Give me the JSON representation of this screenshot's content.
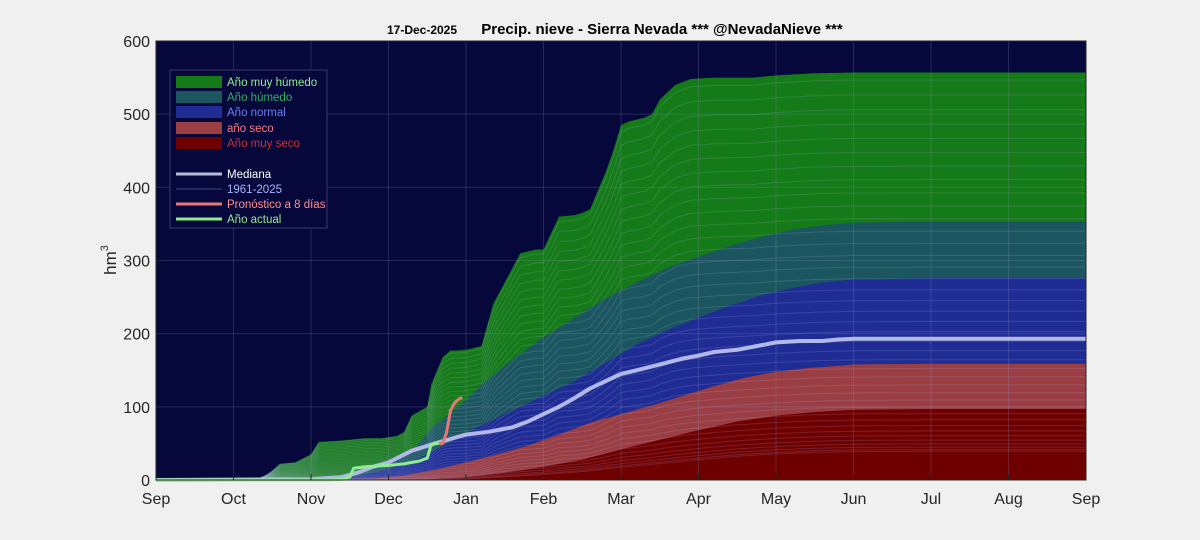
{
  "chart_data": {
    "type": "area",
    "title_date": "17-Dec-2025",
    "title": "Precip. nieve - Sierra Nevada  *** @NevadaNieve ***",
    "ylabel_base": "hm",
    "ylabel_exp": "3",
    "ylim": [
      0,
      600
    ],
    "yticks": [
      "0",
      "100",
      "200",
      "300",
      "400",
      "500",
      "600"
    ],
    "xlim": [
      0,
      12
    ],
    "xticks": [
      "Sep",
      "Oct",
      "Nov",
      "Dec",
      "Jan",
      "Feb",
      "Mar",
      "Apr",
      "May",
      "Jun",
      "Jul",
      "Aug",
      "Sep"
    ],
    "grid": true,
    "legend_position": "top-left",
    "colors": {
      "plot_bg": "#06073a",
      "muy_humedo": "#157a18",
      "humedo": "#1b5660",
      "normal": "#1f2c94",
      "seco": "#9a3e44",
      "muy_seco": "#6e0000",
      "mediana": "#b2b8e8",
      "pronostico": "#e87878",
      "actual": "#8fef8f"
    },
    "legend": [
      {
        "label": "Año muy húmedo",
        "kind": "patch",
        "color": "#157a18",
        "text_color": "#8fef8f"
      },
      {
        "label": "Año húmedo",
        "kind": "patch",
        "color": "#1b5660",
        "text_color": "#2fb06a"
      },
      {
        "label": "Año normal",
        "kind": "patch",
        "color": "#1f2c94",
        "text_color": "#6c7ef0"
      },
      {
        "label": "año seco",
        "kind": "patch",
        "color": "#9a3e44",
        "text_color": "#ff7b7b"
      },
      {
        "label": "Año muy seco",
        "kind": "patch",
        "color": "#6e0000",
        "text_color": "#d03030"
      },
      {
        "label": "Mediana",
        "kind": "line",
        "color": "#b8bcd8",
        "text_color": "#ffffff"
      },
      {
        "label": "1961-2025",
        "kind": "thinline",
        "color": "#3a4a8a",
        "text_color": "#a8b8ff"
      },
      {
        "label": "Pronóstico a 8 días",
        "kind": "line",
        "color": "#e87878",
        "text_color": "#ff9090"
      },
      {
        "label": "Año actual",
        "kind": "line",
        "color": "#8fef8f",
        "text_color": "#8fef8f"
      }
    ],
    "series": [
      {
        "name": "Año muy húmedo",
        "x": [
          0,
          1.3,
          1.45,
          1.6,
          1.8,
          2.0,
          2.1,
          2.4,
          2.7,
          2.9,
          3.1,
          3.2,
          3.3,
          3.5,
          3.55,
          3.7,
          3.8,
          3.9,
          4.0,
          4.2,
          4.35,
          4.5,
          4.7,
          4.9,
          5.0,
          5.2,
          5.4,
          5.5,
          5.6,
          5.8,
          5.9,
          6.0,
          6.1,
          6.3,
          6.4,
          6.5,
          6.7,
          6.9,
          7.2,
          7.5,
          7.7,
          8.0,
          8.5,
          9.0,
          10.0,
          11.0,
          12.0
        ],
        "y": [
          0,
          1,
          8,
          22,
          24,
          35,
          52,
          54,
          57,
          57,
          60,
          65,
          88,
          100,
          130,
          168,
          177,
          177,
          178,
          183,
          240,
          270,
          310,
          315,
          315,
          360,
          362,
          365,
          370,
          420,
          450,
          485,
          490,
          495,
          500,
          520,
          540,
          548,
          550,
          550,
          550,
          553,
          556,
          557,
          557,
          557,
          557
        ]
      },
      {
        "name": "Año húmedo",
        "x": [
          0,
          2.0,
          2.3,
          2.7,
          3.0,
          3.3,
          3.6,
          3.9,
          4.2,
          4.6,
          5.0,
          5.4,
          5.8,
          6.2,
          6.6,
          7.0,
          7.4,
          7.8,
          8.2,
          8.6,
          9.0,
          10.0,
          11.0,
          12.0
        ],
        "y": [
          0,
          2,
          5,
          12,
          22,
          40,
          75,
          100,
          130,
          165,
          195,
          222,
          248,
          270,
          290,
          305,
          320,
          332,
          342,
          348,
          352,
          353,
          353,
          353
        ]
      },
      {
        "name": "Año normal",
        "x": [
          0,
          2.2,
          2.6,
          3.0,
          3.4,
          3.8,
          4.2,
          4.6,
          5.0,
          5.4,
          5.8,
          6.2,
          6.6,
          7.0,
          7.4,
          7.8,
          8.2,
          8.6,
          9.0,
          10.0,
          11.0,
          12.0
        ],
        "y": [
          0,
          2,
          5,
          15,
          30,
          52,
          75,
          95,
          115,
          135,
          160,
          185,
          205,
          222,
          238,
          252,
          262,
          270,
          274,
          276,
          276,
          276
        ]
      },
      {
        "name": "año seco",
        "x": [
          0,
          2.8,
          3.2,
          3.6,
          4.0,
          4.4,
          4.8,
          5.2,
          5.6,
          6.0,
          6.4,
          6.8,
          7.2,
          7.6,
          8.0,
          8.4,
          8.8,
          9.0,
          10.0,
          11.0,
          12.0
        ],
        "y": [
          0,
          2,
          6,
          14,
          24,
          35,
          47,
          62,
          78,
          90,
          102,
          115,
          128,
          140,
          148,
          153,
          156,
          158,
          159,
          159,
          159
        ]
      },
      {
        "name": "Año muy seco",
        "x": [
          0,
          3.5,
          4.0,
          4.5,
          5.0,
          5.5,
          6.0,
          6.5,
          7.0,
          7.5,
          8.0,
          8.5,
          9.0,
          10.0,
          11.0,
          12.0
        ],
        "y": [
          0,
          1,
          4,
          10,
          18,
          28,
          42,
          55,
          68,
          80,
          88,
          93,
          96,
          97,
          97,
          97
        ]
      },
      {
        "name": "Mediana",
        "x": [
          0,
          2.0,
          2.4,
          2.6,
          2.8,
          3.0,
          3.3,
          3.6,
          3.8,
          4.0,
          4.3,
          4.6,
          4.8,
          5.0,
          5.2,
          5.4,
          5.6,
          5.8,
          6.0,
          6.2,
          6.5,
          6.8,
          7.0,
          7.2,
          7.5,
          7.8,
          8.0,
          8.3,
          8.6,
          8.8,
          9.0,
          10.0,
          11.0,
          12.0
        ],
        "y": [
          0,
          1,
          4,
          10,
          18,
          24,
          40,
          50,
          56,
          62,
          66,
          72,
          80,
          90,
          100,
          112,
          125,
          135,
          145,
          150,
          158,
          166,
          170,
          175,
          178,
          184,
          188,
          190,
          190,
          192,
          193,
          193,
          193,
          193
        ]
      },
      {
        "name": "Año actual",
        "x": [
          0,
          1.5,
          2.0,
          2.2,
          2.4,
          2.5,
          2.55,
          2.7,
          3.0,
          3.2,
          3.3,
          3.4,
          3.5,
          3.55,
          3.6,
          3.65
        ],
        "y": [
          0,
          0,
          0,
          0,
          1,
          4,
          16,
          18,
          20,
          22,
          24,
          26,
          30,
          48,
          50,
          50
        ]
      },
      {
        "name": "Pronóstico a 8 días",
        "x": [
          3.65,
          3.7,
          3.75,
          3.8,
          3.85,
          3.9,
          3.95
        ],
        "y": [
          50,
          50,
          65,
          95,
          105,
          110,
          113
        ]
      }
    ]
  }
}
